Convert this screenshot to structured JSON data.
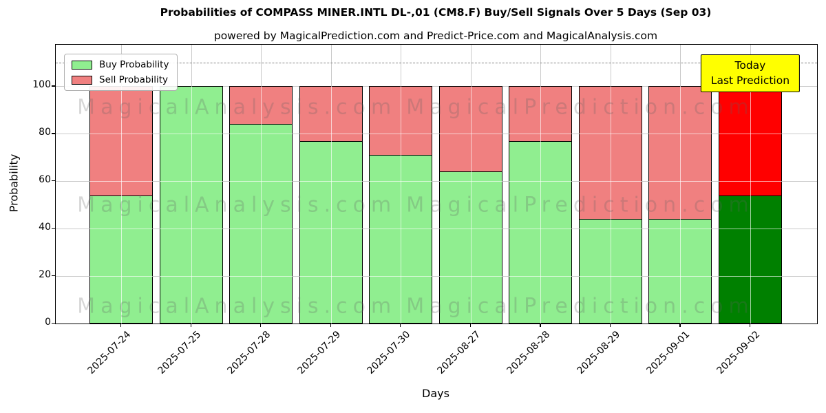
{
  "header": {
    "title": "Probabilities of COMPASS MINER.INTL DL-,01 (CM8.F) Buy/Sell Signals Over 5 Days (Sep 03)",
    "subtitle": "powered by MagicalPrediction.com and Predict-Price.com and MagicalAnalysis.com"
  },
  "chart_data": {
    "type": "bar",
    "stacked": true,
    "title": "Probabilities of COMPASS MINER.INTL DL-,01 (CM8.F) Buy/Sell Signals Over 5 Days (Sep 03)",
    "xlabel": "Days",
    "ylabel": "Probability",
    "categories": [
      "2025-07-24",
      "2025-07-25",
      "2025-07-28",
      "2025-07-29",
      "2025-07-30",
      "2025-08-27",
      "2025-08-28",
      "2025-08-29",
      "2025-09-01",
      "2025-09-02"
    ],
    "series": [
      {
        "name": "Buy Probability",
        "values": [
          54,
          100,
          84,
          77,
          71,
          64,
          77,
          44,
          44,
          54
        ],
        "color": "#90EE90",
        "highlight_color": "#008000"
      },
      {
        "name": "Sell Probability",
        "values": [
          46,
          0,
          16,
          23,
          29,
          36,
          23,
          56,
          56,
          46
        ],
        "color": "#F08080",
        "highlight_color": "#FF0000"
      }
    ],
    "highlight_index": 9,
    "bar_edge_color": "#000000",
    "ylim": [
      0,
      117.5
    ],
    "yticks": [
      0,
      20,
      40,
      60,
      80,
      100
    ],
    "grid": true,
    "legend_loc": "upper left",
    "dashed_line_y": 110,
    "annotation": {
      "lines": [
        "Today",
        "Last Prediction"
      ],
      "bg_color": "#FFFF00"
    },
    "watermarks": [
      "MagicalAnalysis.com",
      "MagicalPrediction.com"
    ]
  }
}
